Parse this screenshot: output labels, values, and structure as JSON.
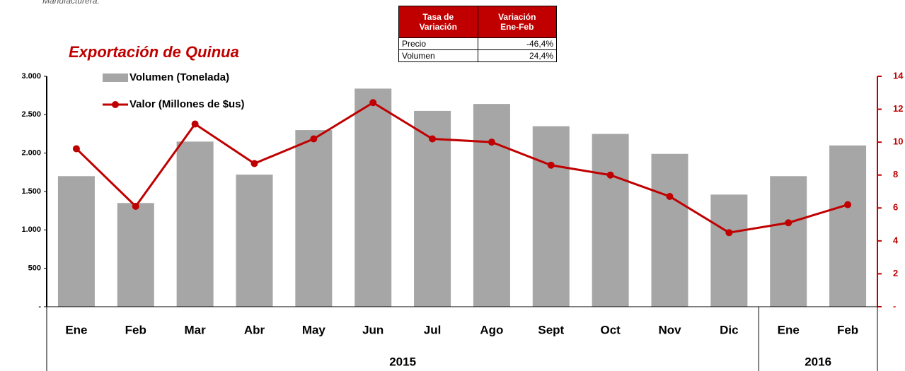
{
  "note": "Manufacturera.",
  "table": {
    "header": [
      "Tasa de\nVariación",
      "Variación\nEne-Feb"
    ],
    "rows": [
      [
        "Precio",
        "-46,4%"
      ],
      [
        "Volumen",
        "24,4%"
      ]
    ]
  },
  "chart_data": {
    "type": "bar-line",
    "title": "Exportación de Quinua",
    "categories": [
      "Ene",
      "Feb",
      "Mar",
      "Abr",
      "May",
      "Jun",
      "Jul",
      "Ago",
      "Sept",
      "Oct",
      "Nov",
      "Dic",
      "Ene",
      "Feb"
    ],
    "groups": [
      {
        "label": "2015",
        "count": 12
      },
      {
        "label": "2016",
        "count": 2
      }
    ],
    "series": [
      {
        "name": "Volumen (Tonelada)",
        "type": "bar",
        "color": "#a6a6a6",
        "axis": "y",
        "values": [
          1700,
          1350,
          2150,
          1720,
          2300,
          2840,
          2550,
          2640,
          2350,
          2250,
          1990,
          1460,
          1700,
          2100
        ]
      },
      {
        "name": "Valor (Millones de $us)",
        "type": "line",
        "color": "#c00000",
        "axis": "y2",
        "values": [
          9.6,
          6.1,
          11.1,
          8.7,
          10.2,
          12.4,
          10.2,
          10.0,
          8.6,
          8.0,
          6.7,
          4.5,
          5.1,
          6.2
        ]
      }
    ],
    "ylim": [
      0,
      3000
    ],
    "yticks": [
      {
        "value": 0,
        "label": "-"
      },
      500,
      {
        "value": 1000,
        "label": "1.000"
      },
      {
        "value": 1500,
        "label": "1.500"
      },
      {
        "value": 2000,
        "label": "2.000"
      },
      {
        "value": 2500,
        "label": "2.500"
      },
      {
        "value": 3000,
        "label": "3.000"
      }
    ],
    "y2lim": [
      0,
      14
    ],
    "y2ticks": [
      {
        "value": 0,
        "label": "-"
      },
      2,
      4,
      6,
      8,
      10,
      12,
      14
    ]
  }
}
